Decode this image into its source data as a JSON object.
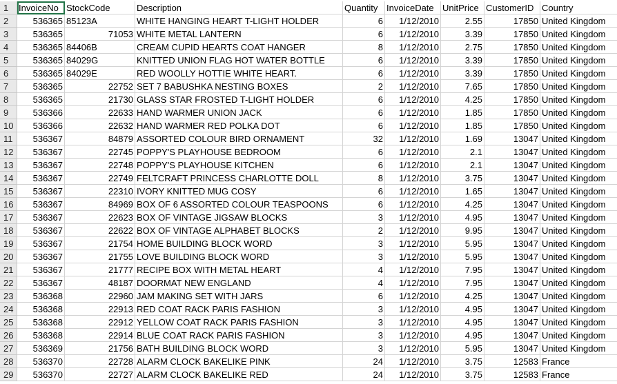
{
  "sheet": {
    "headers": [
      "InvoiceNo",
      "StockCode",
      "Description",
      "Quantity",
      "InvoiceDate",
      "UnitPrice",
      "CustomerID",
      "Country"
    ],
    "rows": [
      {
        "n": "2",
        "inv": "536365",
        "stock": "85123A",
        "stock_num": false,
        "desc": "WHITE HANGING HEART T-LIGHT HOLDER",
        "qty": "6",
        "date": "1/12/2010",
        "price": "2.55",
        "cust": "17850",
        "country": "United Kingdom"
      },
      {
        "n": "3",
        "inv": "536365",
        "stock": "71053",
        "stock_num": true,
        "desc": "WHITE METAL LANTERN",
        "qty": "6",
        "date": "1/12/2010",
        "price": "3.39",
        "cust": "17850",
        "country": "United Kingdom"
      },
      {
        "n": "4",
        "inv": "536365",
        "stock": "84406B",
        "stock_num": false,
        "desc": "CREAM CUPID HEARTS COAT HANGER",
        "qty": "8",
        "date": "1/12/2010",
        "price": "2.75",
        "cust": "17850",
        "country": "United Kingdom"
      },
      {
        "n": "5",
        "inv": "536365",
        "stock": "84029G",
        "stock_num": false,
        "desc": "KNITTED UNION FLAG HOT WATER BOTTLE",
        "qty": "6",
        "date": "1/12/2010",
        "price": "3.39",
        "cust": "17850",
        "country": "United Kingdom"
      },
      {
        "n": "6",
        "inv": "536365",
        "stock": "84029E",
        "stock_num": false,
        "desc": "RED WOOLLY HOTTIE WHITE HEART.",
        "qty": "6",
        "date": "1/12/2010",
        "price": "3.39",
        "cust": "17850",
        "country": "United Kingdom"
      },
      {
        "n": "7",
        "inv": "536365",
        "stock": "22752",
        "stock_num": true,
        "desc": "SET 7 BABUSHKA NESTING BOXES",
        "qty": "2",
        "date": "1/12/2010",
        "price": "7.65",
        "cust": "17850",
        "country": "United Kingdom"
      },
      {
        "n": "8",
        "inv": "536365",
        "stock": "21730",
        "stock_num": true,
        "desc": "GLASS STAR FROSTED T-LIGHT HOLDER",
        "qty": "6",
        "date": "1/12/2010",
        "price": "4.25",
        "cust": "17850",
        "country": "United Kingdom"
      },
      {
        "n": "9",
        "inv": "536366",
        "stock": "22633",
        "stock_num": true,
        "desc": "HAND WARMER UNION JACK",
        "qty": "6",
        "date": "1/12/2010",
        "price": "1.85",
        "cust": "17850",
        "country": "United Kingdom"
      },
      {
        "n": "10",
        "inv": "536366",
        "stock": "22632",
        "stock_num": true,
        "desc": "HAND WARMER RED POLKA DOT",
        "qty": "6",
        "date": "1/12/2010",
        "price": "1.85",
        "cust": "17850",
        "country": "United Kingdom"
      },
      {
        "n": "11",
        "inv": "536367",
        "stock": "84879",
        "stock_num": true,
        "desc": "ASSORTED COLOUR BIRD ORNAMENT",
        "qty": "32",
        "date": "1/12/2010",
        "price": "1.69",
        "cust": "13047",
        "country": "United Kingdom"
      },
      {
        "n": "12",
        "inv": "536367",
        "stock": "22745",
        "stock_num": true,
        "desc": "POPPY'S PLAYHOUSE BEDROOM",
        "qty": "6",
        "date": "1/12/2010",
        "price": "2.1",
        "cust": "13047",
        "country": "United Kingdom"
      },
      {
        "n": "13",
        "inv": "536367",
        "stock": "22748",
        "stock_num": true,
        "desc": "POPPY'S PLAYHOUSE KITCHEN",
        "qty": "6",
        "date": "1/12/2010",
        "price": "2.1",
        "cust": "13047",
        "country": "United Kingdom"
      },
      {
        "n": "14",
        "inv": "536367",
        "stock": "22749",
        "stock_num": true,
        "desc": "FELTCRAFT PRINCESS CHARLOTTE DOLL",
        "qty": "8",
        "date": "1/12/2010",
        "price": "3.75",
        "cust": "13047",
        "country": "United Kingdom"
      },
      {
        "n": "15",
        "inv": "536367",
        "stock": "22310",
        "stock_num": true,
        "desc": "IVORY KNITTED MUG COSY",
        "qty": "6",
        "date": "1/12/2010",
        "price": "1.65",
        "cust": "13047",
        "country": "United Kingdom"
      },
      {
        "n": "16",
        "inv": "536367",
        "stock": "84969",
        "stock_num": true,
        "desc": "BOX OF 6 ASSORTED COLOUR TEASPOONS",
        "qty": "6",
        "date": "1/12/2010",
        "price": "4.25",
        "cust": "13047",
        "country": "United Kingdom"
      },
      {
        "n": "17",
        "inv": "536367",
        "stock": "22623",
        "stock_num": true,
        "desc": "BOX OF VINTAGE JIGSAW BLOCKS",
        "qty": "3",
        "date": "1/12/2010",
        "price": "4.95",
        "cust": "13047",
        "country": "United Kingdom"
      },
      {
        "n": "18",
        "inv": "536367",
        "stock": "22622",
        "stock_num": true,
        "desc": "BOX OF VINTAGE ALPHABET BLOCKS",
        "qty": "2",
        "date": "1/12/2010",
        "price": "9.95",
        "cust": "13047",
        "country": "United Kingdom"
      },
      {
        "n": "19",
        "inv": "536367",
        "stock": "21754",
        "stock_num": true,
        "desc": "HOME BUILDING BLOCK WORD",
        "qty": "3",
        "date": "1/12/2010",
        "price": "5.95",
        "cust": "13047",
        "country": "United Kingdom"
      },
      {
        "n": "20",
        "inv": "536367",
        "stock": "21755",
        "stock_num": true,
        "desc": "LOVE BUILDING BLOCK WORD",
        "qty": "3",
        "date": "1/12/2010",
        "price": "5.95",
        "cust": "13047",
        "country": "United Kingdom"
      },
      {
        "n": "21",
        "inv": "536367",
        "stock": "21777",
        "stock_num": true,
        "desc": "RECIPE BOX WITH METAL HEART",
        "qty": "4",
        "date": "1/12/2010",
        "price": "7.95",
        "cust": "13047",
        "country": "United Kingdom"
      },
      {
        "n": "22",
        "inv": "536367",
        "stock": "48187",
        "stock_num": true,
        "desc": "DOORMAT NEW ENGLAND",
        "qty": "4",
        "date": "1/12/2010",
        "price": "7.95",
        "cust": "13047",
        "country": "United Kingdom"
      },
      {
        "n": "23",
        "inv": "536368",
        "stock": "22960",
        "stock_num": true,
        "desc": "JAM MAKING SET WITH JARS",
        "qty": "6",
        "date": "1/12/2010",
        "price": "4.25",
        "cust": "13047",
        "country": "United Kingdom"
      },
      {
        "n": "24",
        "inv": "536368",
        "stock": "22913",
        "stock_num": true,
        "desc": "RED COAT RACK PARIS FASHION",
        "qty": "3",
        "date": "1/12/2010",
        "price": "4.95",
        "cust": "13047",
        "country": "United Kingdom"
      },
      {
        "n": "25",
        "inv": "536368",
        "stock": "22912",
        "stock_num": true,
        "desc": "YELLOW COAT RACK PARIS FASHION",
        "qty": "3",
        "date": "1/12/2010",
        "price": "4.95",
        "cust": "13047",
        "country": "United Kingdom"
      },
      {
        "n": "26",
        "inv": "536368",
        "stock": "22914",
        "stock_num": true,
        "desc": "BLUE COAT RACK PARIS FASHION",
        "qty": "3",
        "date": "1/12/2010",
        "price": "4.95",
        "cust": "13047",
        "country": "United Kingdom"
      },
      {
        "n": "27",
        "inv": "536369",
        "stock": "21756",
        "stock_num": true,
        "desc": "BATH BUILDING BLOCK WORD",
        "qty": "3",
        "date": "1/12/2010",
        "price": "5.95",
        "cust": "13047",
        "country": "United Kingdom"
      },
      {
        "n": "28",
        "inv": "536370",
        "stock": "22728",
        "stock_num": true,
        "desc": "ALARM CLOCK BAKELIKE PINK",
        "qty": "24",
        "date": "1/12/2010",
        "price": "3.75",
        "cust": "12583",
        "country": "France"
      },
      {
        "n": "29",
        "inv": "536370",
        "stock": "22727",
        "stock_num": true,
        "desc": "ALARM CLOCK BAKELIKE RED",
        "qty": "24",
        "date": "1/12/2010",
        "price": "3.75",
        "cust": "12583",
        "country": "France"
      }
    ]
  }
}
